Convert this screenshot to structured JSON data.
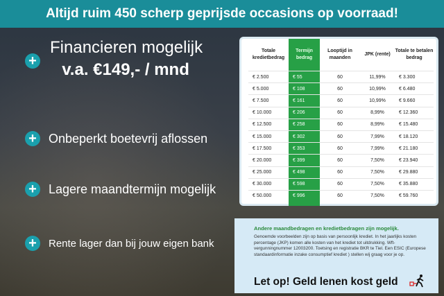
{
  "banner": "Altijd ruim 450 scherp geprijsde occasions op voorraad!",
  "bullets": [
    {
      "line1": "Financieren mogelijk",
      "line2": "v.a. €149,- / mnd"
    },
    {
      "text": "Onbeperkt boetevrij aflossen"
    },
    {
      "text": "Lagere maandtermijn mogelijk"
    },
    {
      "text": "Rente lager dan bij jouw eigen bank"
    }
  ],
  "colors": {
    "banner": "#1a8d99",
    "accent_green": "#27a046",
    "plus": "#1aa0ad"
  },
  "table": {
    "headers": [
      "Totale kredietbedrag",
      "Termijn bedrag",
      "Looptijd in maanden",
      "JPK (rente)",
      "Totale te betalen bedrag"
    ],
    "rows": [
      [
        "€ 2.500",
        "€ 55",
        "60",
        "11,99%",
        "€ 3.300"
      ],
      [
        "€ 5.000",
        "€ 108",
        "60",
        "10,99%",
        "€ 6.480"
      ],
      [
        "€ 7.500",
        "€ 161",
        "60",
        "10,99%",
        "€ 9.660"
      ],
      [
        "€ 10.000",
        "€ 206",
        "60",
        "8,99%",
        "€ 12.360"
      ],
      [
        "€ 12.500",
        "€ 258",
        "60",
        "8,99%",
        "€ 15.480"
      ],
      [
        "€ 15.000",
        "€ 302",
        "60",
        "7,99%",
        "€ 18.120"
      ],
      [
        "€ 17.500",
        "€ 353",
        "60",
        "7,99%",
        "€ 21.180"
      ],
      [
        "€ 20.000",
        "€ 399",
        "60",
        "7,50%",
        "€ 23.940"
      ],
      [
        "€ 25.000",
        "€ 498",
        "60",
        "7,50%",
        "€ 29.880"
      ],
      [
        "€ 30.000",
        "€ 598",
        "60",
        "7,50%",
        "€ 35.880"
      ],
      [
        "€ 50.000",
        "€ 996",
        "60",
        "7,50%",
        "€ 59.760"
      ]
    ]
  },
  "info": {
    "heading": "Andere maandbedragen en kredietbedragen zijn mogelijk.",
    "body": "Genoemde voorbeelden zijn op basis van persoonlijk krediet. In het jaarlijks kosten percentage (JKP) komen alle kosten van het krediet tot uitdrukking. Wft-vergunningnummer 12003200. Toetsing en registratie BKR te Tiel. Een ESIC (Europese standaardinformatie inzake consumptief krediet ) stellen wij graag voor je op.",
    "warning": "Let op! Geld lenen kost geld"
  }
}
